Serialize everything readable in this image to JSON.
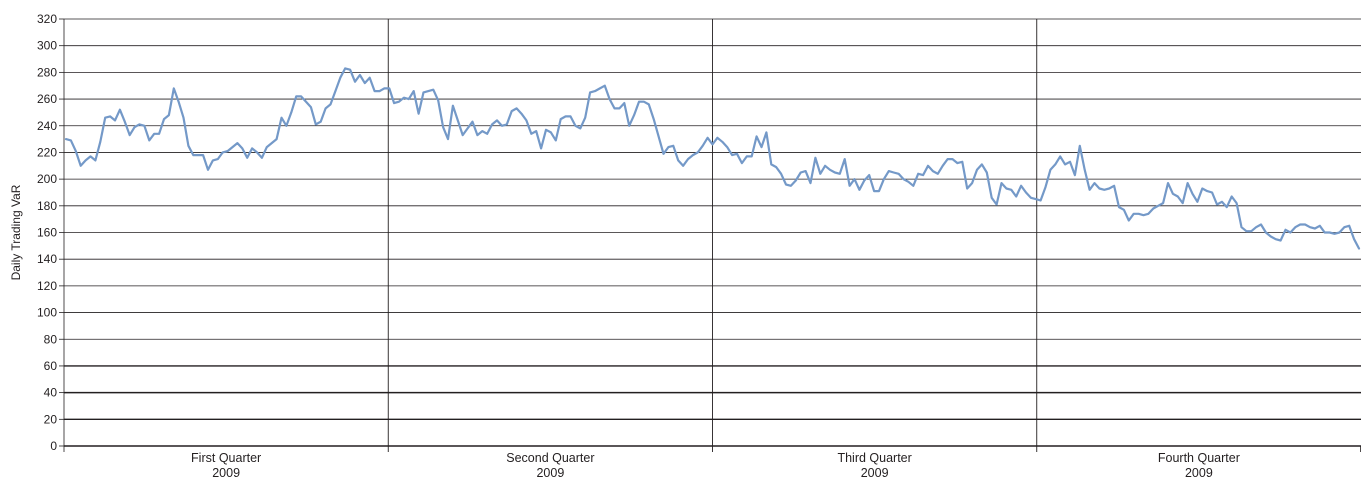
{
  "chart_data": {
    "type": "line",
    "title": "",
    "xlabel": "",
    "ylabel": "Daily Trading VaR",
    "ylim": [
      0,
      320
    ],
    "y_ticks": [
      "0",
      "20",
      "40",
      "60",
      "80",
      "100",
      "120",
      "140",
      "160",
      "180",
      "200",
      "220",
      "240",
      "260",
      "280",
      "300",
      "320"
    ],
    "grid": true,
    "legend": "none",
    "line_color": "#7499c8",
    "quarters": [
      {
        "name": "First Quarter",
        "year": "2009"
      },
      {
        "name": "Second Quarter",
        "year": "2009"
      },
      {
        "name": "Third Quarter",
        "year": "2009"
      },
      {
        "name": "Fourth Quarter",
        "year": "2009"
      }
    ],
    "series": [
      {
        "values": [
          230,
          229,
          221,
          210,
          214,
          217,
          214,
          228,
          246,
          247,
          244,
          252,
          243,
          233,
          239,
          241,
          240,
          229,
          234,
          234,
          245,
          248,
          268,
          258,
          246,
          225,
          218,
          218,
          218,
          207,
          214,
          215,
          220,
          221,
          224,
          227,
          223,
          216,
          223,
          220,
          216,
          224,
          227,
          230,
          246,
          240,
          250,
          262,
          262,
          258,
          254,
          241,
          243,
          253,
          256,
          266,
          276,
          283,
          282,
          273,
          278,
          272,
          276,
          266,
          266,
          268,
          268,
          257,
          258,
          261,
          260,
          266,
          249,
          265,
          266,
          267,
          259,
          239,
          230,
          255,
          244,
          233,
          238,
          243,
          233,
          236,
          234,
          241,
          244,
          240,
          241,
          251,
          253,
          249,
          244,
          234,
          236,
          223,
          237,
          235,
          229,
          245,
          247,
          247,
          240,
          238,
          246,
          265,
          266,
          268,
          270,
          260,
          253,
          253,
          257,
          240,
          248,
          258,
          258,
          256,
          245,
          232,
          219,
          224,
          225,
          214,
          210,
          215,
          218,
          220,
          225,
          231,
          226,
          231,
          228,
          224,
          218,
          219,
          212,
          217,
          217,
          232,
          224,
          235,
          211,
          209,
          204,
          196,
          195,
          199,
          205,
          206,
          197,
          216,
          204,
          210,
          207,
          205,
          204,
          215,
          195,
          200,
          192,
          199,
          203,
          191,
          191,
          200,
          206,
          205,
          204,
          200,
          198,
          195,
          204,
          203,
          210,
          206,
          204,
          210,
          215,
          215,
          212,
          213,
          193,
          197,
          207,
          211,
          205,
          186,
          181,
          197,
          193,
          192,
          187,
          195,
          190,
          186,
          185,
          184,
          194,
          207,
          211,
          217,
          211,
          213,
          203,
          225,
          207,
          192,
          197,
          193,
          192,
          193,
          195,
          179,
          177,
          169,
          174,
          174,
          173,
          174,
          178,
          180,
          182,
          197,
          189,
          187,
          182,
          197,
          189,
          183,
          193,
          191,
          190,
          181,
          183,
          179,
          187,
          182,
          164,
          161,
          161,
          164,
          166,
          160,
          157,
          155,
          154,
          162,
          160,
          164,
          166,
          166,
          164,
          163,
          165,
          160,
          160,
          159,
          160,
          164,
          165,
          155,
          148
        ]
      }
    ]
  }
}
